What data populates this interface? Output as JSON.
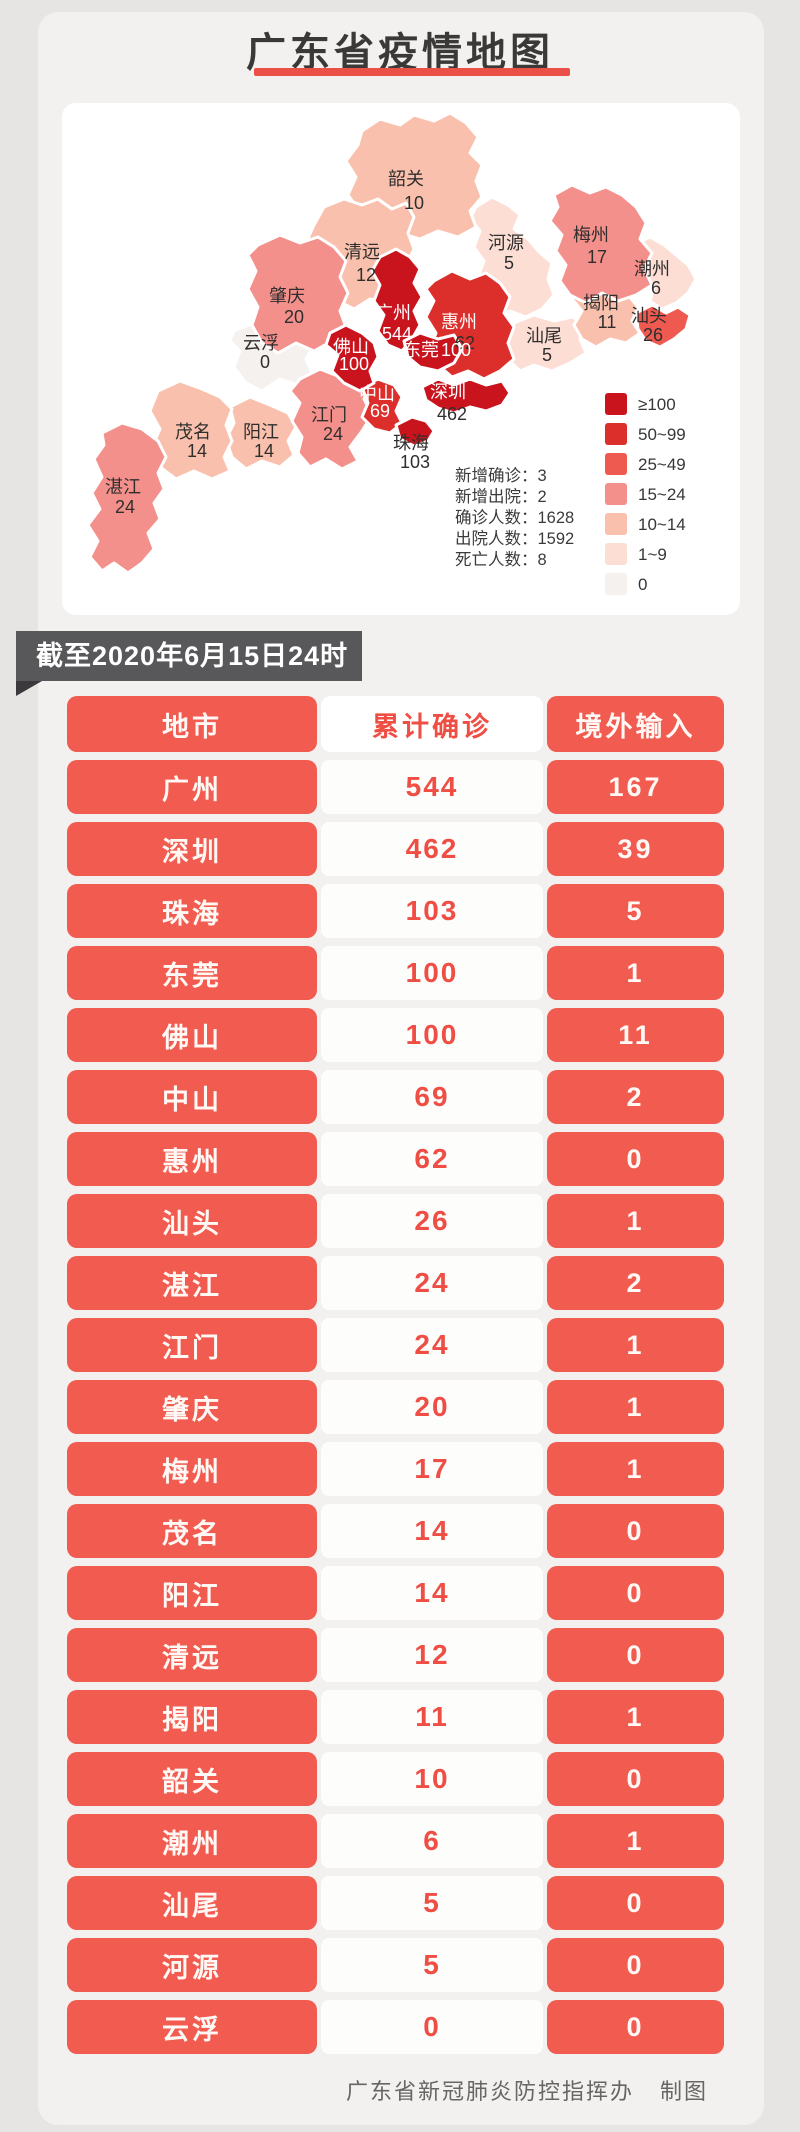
{
  "page": {
    "title": "广东省疫情地图",
    "as_of": "截至2020年6月15日24时",
    "footer_org": "广东省新冠肺炎防控指挥办",
    "footer_note": "制图",
    "accent_red": "#f15b50",
    "dark_red": "#c9141e",
    "underline_red": "#ea5048",
    "banner_gray": "#58575a"
  },
  "map": {
    "stats_lines": [
      "新增确诊：3",
      "新增出院：2",
      "确诊人数：1628",
      "出院人数：1592",
      "死亡人数：8"
    ],
    "legend": {
      "items": [
        {
          "label": "≥100",
          "color": "#c9141e"
        },
        {
          "label": "50~99",
          "color": "#dc2f2b"
        },
        {
          "label": "25~49",
          "color": "#ef5a50"
        },
        {
          "label": "15~24",
          "color": "#f4908c"
        },
        {
          "label": "10~14",
          "color": "#f9c0ad"
        },
        {
          "label": "1~9",
          "color": "#fcded5"
        },
        {
          "label": "0",
          "color": "#f4f1ee"
        }
      ]
    },
    "cities": [
      {
        "name": "韶关",
        "count": "10",
        "color": "#f9c0ad"
      },
      {
        "name": "清远",
        "count": "12",
        "color": "#f9c0ad"
      },
      {
        "name": "河源",
        "count": "5",
        "color": "#fcded5"
      },
      {
        "name": "梅州",
        "count": "17",
        "color": "#f4908c"
      },
      {
        "name": "潮州",
        "count": "6",
        "color": "#fcded5"
      },
      {
        "name": "揭阳",
        "count": "11",
        "color": "#f9c0ad"
      },
      {
        "name": "汕头",
        "count": "26",
        "color": "#ef5a50"
      },
      {
        "name": "汕尾",
        "count": "5",
        "color": "#fcded5"
      },
      {
        "name": "惠州",
        "count": "62",
        "color": "#dc2f2b"
      },
      {
        "name": "广州",
        "count": "544",
        "color": "#c9141e"
      },
      {
        "name": "肇庆",
        "count": "20",
        "color": "#f4908c"
      },
      {
        "name": "云浮",
        "count": "0",
        "color": "#f4f1ee"
      },
      {
        "name": "佛山",
        "count": "100",
        "color": "#c9141e"
      },
      {
        "name": "东莞",
        "count": "100",
        "color": "#c9141e"
      },
      {
        "name": "中山",
        "count": "69",
        "color": "#dc2f2b"
      },
      {
        "name": "深圳",
        "count": "462",
        "color": "#c9141e"
      },
      {
        "name": "珠海",
        "count": "103",
        "color": "#c9141e"
      },
      {
        "name": "江门",
        "count": "24",
        "color": "#f4908c"
      },
      {
        "name": "茂名",
        "count": "14",
        "color": "#f9c0ad"
      },
      {
        "name": "阳江",
        "count": "14",
        "color": "#f9c0ad"
      },
      {
        "name": "湛江",
        "count": "24",
        "color": "#f4908c"
      }
    ]
  },
  "table": {
    "headers": [
      "地市",
      "累计确诊",
      "境外输入"
    ],
    "rows": [
      {
        "city": "广州",
        "confirmed": "544",
        "imported": "167"
      },
      {
        "city": "深圳",
        "confirmed": "462",
        "imported": "39"
      },
      {
        "city": "珠海",
        "confirmed": "103",
        "imported": "5"
      },
      {
        "city": "东莞",
        "confirmed": "100",
        "imported": "1"
      },
      {
        "city": "佛山",
        "confirmed": "100",
        "imported": "11"
      },
      {
        "city": "中山",
        "confirmed": "69",
        "imported": "2"
      },
      {
        "city": "惠州",
        "confirmed": "62",
        "imported": "0"
      },
      {
        "city": "汕头",
        "confirmed": "26",
        "imported": "1"
      },
      {
        "city": "湛江",
        "confirmed": "24",
        "imported": "2"
      },
      {
        "city": "江门",
        "confirmed": "24",
        "imported": "1"
      },
      {
        "city": "肇庆",
        "confirmed": "20",
        "imported": "1"
      },
      {
        "city": "梅州",
        "confirmed": "17",
        "imported": "1"
      },
      {
        "city": "茂名",
        "confirmed": "14",
        "imported": "0"
      },
      {
        "city": "阳江",
        "confirmed": "14",
        "imported": "0"
      },
      {
        "city": "清远",
        "confirmed": "12",
        "imported": "0"
      },
      {
        "city": "揭阳",
        "confirmed": "11",
        "imported": "1"
      },
      {
        "city": "韶关",
        "confirmed": "10",
        "imported": "0"
      },
      {
        "city": "潮州",
        "confirmed": "6",
        "imported": "1"
      },
      {
        "city": "汕尾",
        "confirmed": "5",
        "imported": "0"
      },
      {
        "city": "河源",
        "confirmed": "5",
        "imported": "0"
      },
      {
        "city": "云浮",
        "confirmed": "0",
        "imported": "0"
      }
    ]
  },
  "chart_data": {
    "type": "heatmap",
    "subtype": "choropleth-map-with-table",
    "title": "广东省疫情地图",
    "as_of": "截至2020年6月15日24时",
    "legend_buckets": [
      "≥100",
      "50~99",
      "25~49",
      "15~24",
      "10~14",
      "1~9",
      "0"
    ],
    "legend_position": "right",
    "categories": [
      "广州",
      "深圳",
      "珠海",
      "东莞",
      "佛山",
      "中山",
      "惠州",
      "汕头",
      "湛江",
      "江门",
      "肇庆",
      "梅州",
      "茂名",
      "阳江",
      "清远",
      "揭阳",
      "韶关",
      "潮州",
      "汕尾",
      "河源",
      "云浮"
    ],
    "series": [
      {
        "name": "累计确诊",
        "values": [
          544,
          462,
          103,
          100,
          100,
          69,
          62,
          26,
          24,
          24,
          20,
          17,
          14,
          14,
          12,
          11,
          10,
          6,
          5,
          5,
          0
        ]
      },
      {
        "name": "境外输入",
        "values": [
          167,
          39,
          5,
          1,
          11,
          2,
          0,
          1,
          2,
          1,
          1,
          1,
          0,
          0,
          0,
          1,
          0,
          1,
          0,
          0,
          0
        ]
      }
    ],
    "summary": {
      "新增确诊": 3,
      "新增出院": 2,
      "确诊人数": 1628,
      "出院人数": 1592,
      "死亡人数": 8
    },
    "credit": "广东省新冠肺炎防控指挥办 制图"
  }
}
